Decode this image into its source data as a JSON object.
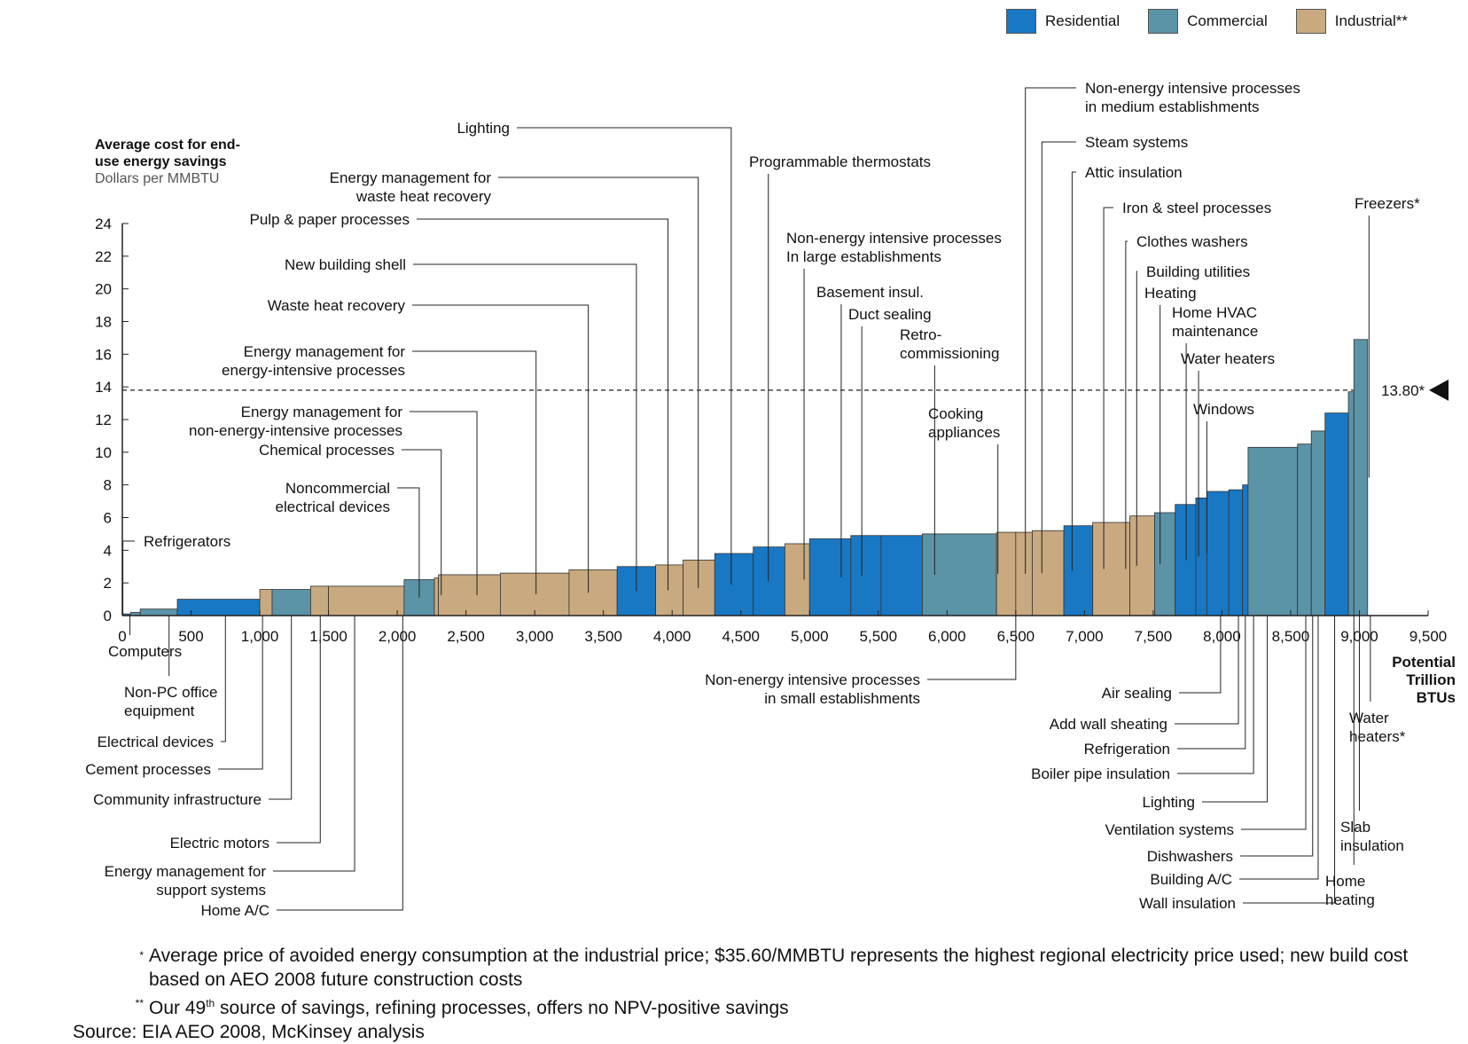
{
  "legend": [
    {
      "name": "Residential",
      "color": "#1978c4"
    },
    {
      "name": "Commercial",
      "color": "#5b93a7"
    },
    {
      "name": "Industrial**",
      "color": "#c9a97f"
    }
  ],
  "chart_data": {
    "type": "bar",
    "subtype": "marginal-cost-curve",
    "ylabel": "Average cost for end-use energy savings",
    "ylabel_unit": "Dollars per MMBTU",
    "xlabel": "Potential Trillion BTUs",
    "xlim": [
      0,
      9500
    ],
    "ylim": [
      0,
      24
    ],
    "x_ticks": [
      "0",
      "500",
      "1,000",
      "1,500",
      "2,000",
      "2,500",
      "3,000",
      "3,500",
      "4,000",
      "4,500",
      "5,000",
      "5,500",
      "6,000",
      "6,500",
      "7,000",
      "7,500",
      "8,000",
      "8,500",
      "9,000",
      "9,500"
    ],
    "y_ticks": [
      "0",
      "2",
      "4",
      "6",
      "8",
      "10",
      "12",
      "14",
      "16",
      "18",
      "20",
      "22",
      "24"
    ],
    "threshold": {
      "value": 13.8,
      "label": "13.80*"
    },
    "bars": [
      {
        "name": "Refrigerators",
        "sector": "residential",
        "x0": 0,
        "x1": 60,
        "cost": 0.1
      },
      {
        "name": "Computers",
        "sector": "commercial",
        "x0": 60,
        "x1": 130,
        "cost": 0.2
      },
      {
        "name": "Non-PC office equipment",
        "sector": "commercial",
        "x0": 130,
        "x1": 400,
        "cost": 0.4
      },
      {
        "name": "Electrical devices",
        "sector": "residential",
        "x0": 400,
        "x1": 1000,
        "cost": 1.0
      },
      {
        "name": "Cement processes",
        "sector": "industrial",
        "x0": 1000,
        "x1": 1090,
        "cost": 1.6
      },
      {
        "name": "Community infrastructure",
        "sector": "commercial",
        "x0": 1090,
        "x1": 1370,
        "cost": 1.6
      },
      {
        "name": "Electric motors",
        "sector": "industrial",
        "x0": 1370,
        "x1": 1500,
        "cost": 1.8
      },
      {
        "name": "Energy management for support systems",
        "sector": "industrial",
        "x0": 1500,
        "x1": 2050,
        "cost": 1.8
      },
      {
        "name": "Home A/C",
        "sector": "commercial",
        "x0": 2050,
        "x1": 2270,
        "cost": 2.2
      },
      {
        "name": "Noncommercial electrical devices",
        "sector": "industrial",
        "x0": 2270,
        "x1": 2300,
        "cost": 2.3
      },
      {
        "name": "Chemical processes",
        "sector": "industrial",
        "x0": 2300,
        "x1": 2750,
        "cost": 2.5
      },
      {
        "name": "Energy management for non-energy-intensive processes",
        "sector": "industrial",
        "x0": 2750,
        "x1": 3250,
        "cost": 2.6
      },
      {
        "name": "Energy management for energy-intensive processes",
        "sector": "industrial",
        "x0": 3250,
        "x1": 3600,
        "cost": 2.8
      },
      {
        "name": "Waste heat recovery",
        "sector": "residential",
        "x0": 3600,
        "x1": 3880,
        "cost": 3.0
      },
      {
        "name": "New building shell",
        "sector": "industrial",
        "x0": 3880,
        "x1": 4080,
        "cost": 3.1
      },
      {
        "name": "Pulp & paper processes",
        "sector": "industrial",
        "x0": 4080,
        "x1": 4310,
        "cost": 3.4
      },
      {
        "name": "Energy management for waste heat recovery",
        "sector": "residential",
        "x0": 4310,
        "x1": 4590,
        "cost": 3.8
      },
      {
        "name": "Lighting",
        "sector": "residential",
        "x0": 4590,
        "x1": 4820,
        "cost": 4.2
      },
      {
        "name": "Programmable thermostats",
        "sector": "industrial",
        "x0": 4820,
        "x1": 5000,
        "cost": 4.4
      },
      {
        "name": "Non-energy intensive processes in large establishments",
        "sector": "residential",
        "x0": 5000,
        "x1": 5300,
        "cost": 4.7
      },
      {
        "name": "Basement insul.",
        "sector": "residential",
        "x0": 5300,
        "x1": 5520,
        "cost": 4.9
      },
      {
        "name": "Duct sealing",
        "sector": "residential",
        "x0": 5520,
        "x1": 5820,
        "cost": 4.9
      },
      {
        "name": "Retro-commissioning",
        "sector": "commercial",
        "x0": 5820,
        "x1": 6360,
        "cost": 5.0
      },
      {
        "name": "Cooking appliances",
        "sector": "industrial",
        "x0": 6360,
        "x1": 6500,
        "cost": 5.1
      },
      {
        "name": "Non-energy intensive processes in small establishments",
        "sector": "industrial",
        "x0": 6500,
        "x1": 6620,
        "cost": 5.1
      },
      {
        "name": "Non-energy intensive processes in medium establishments",
        "sector": "industrial",
        "x0": 6620,
        "x1": 6850,
        "cost": 5.2
      },
      {
        "name": "Steam systems",
        "sector": "residential",
        "x0": 6850,
        "x1": 7060,
        "cost": 5.5
      },
      {
        "name": "Attic insulation",
        "sector": "industrial",
        "x0": 7060,
        "x1": 7330,
        "cost": 5.7
      },
      {
        "name": "Iron & steel processes",
        "sector": "industrial",
        "x0": 7330,
        "x1": 7510,
        "cost": 6.1
      },
      {
        "name": "Clothes washers",
        "sector": "commercial",
        "x0": 7510,
        "x1": 7660,
        "cost": 6.3
      },
      {
        "name": "Building utilities",
        "sector": "residential",
        "x0": 7660,
        "x1": 7810,
        "cost": 6.8
      },
      {
        "name": "Heating",
        "sector": "residential",
        "x0": 7810,
        "x1": 7890,
        "cost": 7.2
      },
      {
        "name": "Home HVAC maintenance",
        "sector": "residential",
        "x0": 7890,
        "x1": 8050,
        "cost": 7.6
      },
      {
        "name": "Water heaters",
        "sector": "residential",
        "x0": 8050,
        "x1": 8150,
        "cost": 7.7
      },
      {
        "name": "Windows",
        "sector": "residential",
        "x0": 8150,
        "x1": 8190,
        "cost": 8.0
      },
      {
        "name": "Air sealing",
        "sector": "commercial",
        "x0": 8190,
        "x1": 8550,
        "cost": 10.3
      },
      {
        "name": "Add wall sheating",
        "sector": "commercial",
        "x0": 8550,
        "x1": 8650,
        "cost": 10.5
      },
      {
        "name": "Refrigeration",
        "sector": "commercial",
        "x0": 8650,
        "x1": 8750,
        "cost": 11.3
      },
      {
        "name": "Boiler pipe insulation",
        "sector": "residential",
        "x0": 8750,
        "x1": 8920,
        "cost": 12.4
      },
      {
        "name": "Lighting (commercial)",
        "sector": "commercial",
        "x0": 8920,
        "x1": 8960,
        "cost": 13.7
      },
      {
        "name": "Freezers*",
        "sector": "commercial",
        "x0": 8960,
        "x1": 9060,
        "cost": 16.9
      }
    ],
    "labels_above": [
      "Refrigerators",
      "Noncommercial electrical devices",
      "Chemical processes",
      "Energy management for non-energy-intensive processes",
      "Energy management for energy-intensive processes",
      "Waste heat recovery",
      "New building shell",
      "Pulp & paper processes",
      "Energy management for waste heat recovery",
      "Lighting",
      "Programmable thermostats",
      "Non-energy intensive processes In large establishments",
      "Basement insul.",
      "Duct sealing",
      "Retro- commissioning",
      "Cooking appliances",
      "Non-energy intensive processes in medium establishments",
      "Steam systems",
      "Attic insulation",
      "Iron & steel processes",
      "Clothes washers",
      "Building utilities",
      "Heating",
      "Home HVAC maintenance",
      "Water heaters",
      "Windows",
      "Freezers*"
    ],
    "labels_below": [
      "Computers",
      "Non-PC office equipment",
      "Electrical devices",
      "Cement processes",
      "Community infrastructure",
      "Electric motors",
      "Energy management for support systems",
      "Home A/C",
      "Non-energy intensive processes in small establishments",
      "Air sealing",
      "Add wall sheating",
      "Refrigeration",
      "Boiler pipe insulation",
      "Lighting",
      "Ventilation systems",
      "Dishwashers",
      "Building A/C",
      "Wall insulation",
      "Water heaters*",
      "Slab insulation",
      "Home heating"
    ]
  },
  "annotations": [
    {
      "text": [
        "Refrigerators"
      ],
      "side": "right",
      "ex": 4
    },
    {
      "text": [
        "Noncommercial",
        "electrical devices"
      ],
      "side": "left",
      "ex": 2160
    },
    {
      "text": [
        "Chemical processes"
      ],
      "side": "left",
      "ex": 2320
    },
    {
      "text": [
        "Energy management for",
        "non-energy-intensive processes"
      ],
      "side": "left",
      "ex": 2580
    },
    {
      "text": [
        "Energy management for",
        "energy-intensive processes"
      ],
      "side": "left",
      "ex": 3010
    },
    {
      "text": [
        "Waste heat recovery"
      ],
      "side": "left",
      "ex": 3390
    },
    {
      "text": [
        "New building shell"
      ],
      "side": "left",
      "ex": 3740
    },
    {
      "text": [
        "Pulp & paper processes"
      ],
      "side": "left",
      "ex": 3970
    },
    {
      "text": [
        "Energy management for",
        "waste heat recovery"
      ],
      "side": "left",
      "ex": 4190
    },
    {
      "text": [
        "Lighting"
      ],
      "side": "left",
      "ex": 4430
    },
    {
      "text": [
        "Programmable thermostats"
      ],
      "side": "top",
      "ex": 4700
    },
    {
      "text": [
        "Non-energy intensive processes",
        "In large establishments"
      ],
      "side": "top",
      "ex": 4960
    },
    {
      "text": [
        "Basement insul."
      ],
      "side": "top",
      "ex": 5230
    },
    {
      "text": [
        "Duct sealing"
      ],
      "side": "top",
      "ex": 5380
    },
    {
      "text": [
        "Retro-",
        "commissioning"
      ],
      "side": "top",
      "ex": 5910
    },
    {
      "text": [
        "Cooking",
        "appliances"
      ],
      "side": "top",
      "ex": 6370
    },
    {
      "text": [
        "Non-energy intensive processes",
        "in medium establishments"
      ],
      "side": "right",
      "ex": 6570
    },
    {
      "text": [
        "Steam systems"
      ],
      "side": "right",
      "ex": 6690
    },
    {
      "text": [
        "Attic insulation"
      ],
      "side": "right",
      "ex": 6910
    },
    {
      "text": [
        "Iron & steel processes"
      ],
      "side": "right",
      "ex": 7140
    },
    {
      "text": [
        "Clothes washers"
      ],
      "side": "right",
      "ex": 7300
    },
    {
      "text": [
        "Building utilities"
      ],
      "side": "right",
      "ex": 7380
    },
    {
      "text": [
        "Heating"
      ],
      "side": "top",
      "ex": 7550
    },
    {
      "text": [
        "Home HVAC",
        "maintenance"
      ],
      "side": "top",
      "ex": 7740
    },
    {
      "text": [
        "Water heaters"
      ],
      "side": "top",
      "ex": 7830
    },
    {
      "text": [
        "Windows"
      ],
      "side": "top",
      "ex": 7890
    },
    {
      "text": [
        "Freezers*"
      ],
      "side": "top",
      "ex": 9070
    },
    {
      "text": [
        "Computers"
      ],
      "side": "below",
      "ex": 55
    },
    {
      "text": [
        "Non-PC office",
        "equipment"
      ],
      "side": "below",
      "ex": 340
    },
    {
      "text": [
        "Electrical devices"
      ],
      "side": "left",
      "ex": 750
    },
    {
      "text": [
        "Cement processes"
      ],
      "side": "left",
      "ex": 1020
    },
    {
      "text": [
        "Community infrastructure"
      ],
      "side": "left",
      "ex": 1230
    },
    {
      "text": [
        "Electric motors"
      ],
      "side": "left",
      "ex": 1440
    },
    {
      "text": [
        "Energy management for",
        "support systems"
      ],
      "side": "left",
      "ex": 1690
    },
    {
      "text": [
        "Home A/C"
      ],
      "side": "left",
      "ex": 2040
    },
    {
      "text": [
        "Non-energy intensive processes",
        "in small establishments"
      ],
      "side": "left",
      "ex": 6500
    },
    {
      "text": [
        "Air sealing"
      ],
      "side": "left",
      "ex": 7990
    },
    {
      "text": [
        "Add wall sheating"
      ],
      "side": "left",
      "ex": 8120
    },
    {
      "text": [
        "Refrigeration"
      ],
      "side": "left",
      "ex": 8170
    },
    {
      "text": [
        "Boiler pipe insulation"
      ],
      "side": "left",
      "ex": 8230
    },
    {
      "text": [
        "Lighting"
      ],
      "side": "left",
      "ex": 8330
    },
    {
      "text": [
        "Ventilation systems"
      ],
      "side": "left",
      "ex": 8610
    },
    {
      "text": [
        "Dishwashers"
      ],
      "side": "left",
      "ex": 8660
    },
    {
      "text": [
        "Building A/C"
      ],
      "side": "left",
      "ex": 8700
    },
    {
      "text": [
        "Wall insulation"
      ],
      "side": "left",
      "ex": 8820
    },
    {
      "text": [
        "Water",
        "heaters*"
      ],
      "side": "below",
      "ex": 9080
    },
    {
      "text": [
        "Slab",
        "insulation"
      ],
      "side": "below",
      "ex": 9000
    },
    {
      "text": [
        "Home",
        "heating"
      ],
      "side": "below",
      "ex": 8960
    }
  ],
  "footnotes": {
    "note1_mark": "*",
    "note1_text": "Average price of avoided energy consumption at the industrial price; $35.60/MMBTU represents the highest regional electricity price used; new build cost based on AEO 2008 future construction costs",
    "note2_mark": "**",
    "note2_text_before": "Our 49",
    "note2_sup": "th",
    "note2_text_after": " source of savings, refining processes, offers no NPV-positive savings",
    "source": "Source: EIA AEO 2008, McKinsey analysis"
  }
}
